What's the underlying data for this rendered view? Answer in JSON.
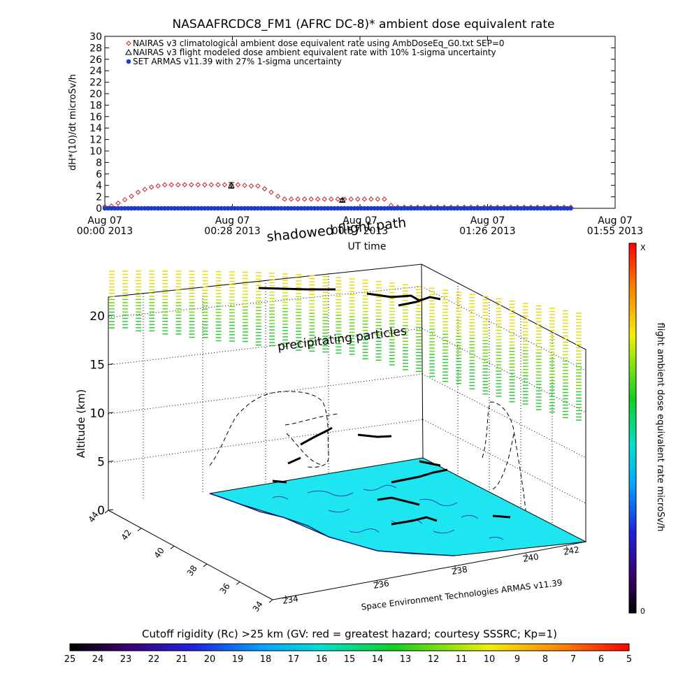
{
  "chart_data": [
    {
      "type": "scatter",
      "title": "NASAAFRCDC8_FM1 (AFRC DC-8)* ambient dose equivalent rate",
      "ylabel": "dH*(10)/dt microSv/h",
      "xlabel": "UT time",
      "ylim": [
        0,
        30
      ],
      "yticks": [
        0,
        2,
        4,
        6,
        8,
        10,
        12,
        14,
        16,
        18,
        20,
        22,
        24,
        26,
        28,
        30
      ],
      "xlim_minutes": [
        0,
        115
      ],
      "xticks": [
        {
          "line1": "Aug 07",
          "line2": "00:00 2013",
          "minute": 0
        },
        {
          "line1": "Aug 07",
          "line2": "00:28 2013",
          "minute": 28.75
        },
        {
          "line1": "Aug 07",
          "line2": "00:57 2013",
          "minute": 57.5
        },
        {
          "line1": "Aug 07",
          "line2": "01:26 2013",
          "minute": 86.25
        },
        {
          "line1": "Aug 07",
          "line2": "01:55 2013",
          "minute": 115
        }
      ],
      "legend": [
        {
          "name": "NAIRAS v3 climatological ambient dose equivalent rate using AmbDoseEq_G0.txt SEP=0",
          "color": "#cc2222",
          "marker": "diamond"
        },
        {
          "name": "NAIRAS v3 flight modeled dose ambient equivalent rate with 10% 1-sigma uncertainty",
          "color": "#000000",
          "marker": "triangle"
        },
        {
          "name": "SET ARMAS v11.39 with 27% 1-sigma uncertainty",
          "color": "#1a3cc8",
          "marker": "circle"
        }
      ],
      "series": [
        {
          "name": "NAIRAS v3 climatological ambient dose equivalent rate using AmbDoseEq_G0.txt SEP=0",
          "x": [
            0,
            1.5,
            3,
            4.5,
            6,
            7.5,
            9,
            10.5,
            12,
            13.5,
            15,
            16.5,
            18,
            19.5,
            21,
            22.5,
            24,
            25.5,
            27,
            28.5,
            30,
            31.5,
            33,
            34.5,
            36,
            37.5,
            39,
            40.5,
            42,
            43.5,
            45,
            46.5,
            48,
            49.5,
            51,
            52.5,
            54,
            55.5,
            57,
            58.5,
            60,
            61.5,
            63,
            64.5,
            66,
            67.5,
            69,
            70.5,
            72,
            73.5,
            75,
            76.5,
            78,
            79.5,
            81,
            82.5,
            84,
            85.5,
            87,
            88.5,
            90,
            91.5,
            93,
            94.5,
            96,
            97.5,
            99,
            100.5,
            102,
            103.5,
            105
          ],
          "y": [
            0.3,
            0.4,
            0.9,
            1.5,
            2.1,
            2.8,
            3.3,
            3.7,
            3.9,
            4.1,
            4.1,
            4.1,
            4.1,
            4.1,
            4.1,
            4.1,
            4.1,
            4.1,
            4.1,
            4.1,
            4.1,
            4.0,
            3.9,
            3.9,
            3.4,
            2.8,
            2.1,
            1.6,
            1.6,
            1.6,
            1.6,
            1.6,
            1.6,
            1.6,
            1.6,
            1.6,
            1.6,
            1.6,
            1.6,
            1.6,
            1.6,
            1.6,
            1.6,
            0.5,
            0.2,
            0.2,
            0.2,
            0.2,
            0.2,
            0.2,
            0.2,
            0.2,
            0.2,
            0.2,
            0.2,
            0.2,
            0.2,
            0.2,
            0.2,
            0.2,
            0.2,
            0.2,
            0.2,
            0.2,
            0.2,
            0.2,
            0.2,
            0.2,
            0.2,
            0.2,
            0.2
          ]
        },
        {
          "name": "NAIRAS v3 flight modeled dose ambient equivalent rate with 10% 1-sigma uncertainty",
          "x": [
            28.5,
            53.5
          ],
          "y": [
            4.0,
            1.4
          ],
          "err": [
            0.5,
            0.25
          ]
        },
        {
          "name": "SET ARMAS v11.39 with 27% 1-sigma uncertainty",
          "x_range": [
            0,
            105
          ],
          "y": 0
        }
      ]
    },
    {
      "type": "scatter",
      "zlabel": "Altitude (km)",
      "zticks": [
        0,
        5,
        10,
        15,
        20
      ],
      "lat_ticks": [
        44,
        42,
        40,
        38,
        36,
        34
      ],
      "lon_ticks": [
        234,
        236,
        238,
        240,
        242
      ],
      "annotations": [
        "shadowed flight path",
        "precipitating particles",
        "Space Environment Technologies ARMAS v11.39"
      ],
      "colorbar_label": "flight ambient dose equivalent rate microSv/h",
      "colorbar_range_labels": [
        "0",
        "X"
      ],
      "sea_color": "#1ee6f0"
    },
    {
      "type": "heatmap",
      "title": "Cutoff rigidity (Rc) >25 km (GV: red = greatest hazard; courtesy SSSRC; Kp=1)",
      "scale_ticks": [
        25,
        24,
        23,
        22,
        21,
        20,
        19,
        18,
        17,
        16,
        15,
        14,
        13,
        12,
        11,
        10,
        9,
        8,
        7,
        6,
        5
      ]
    }
  ]
}
